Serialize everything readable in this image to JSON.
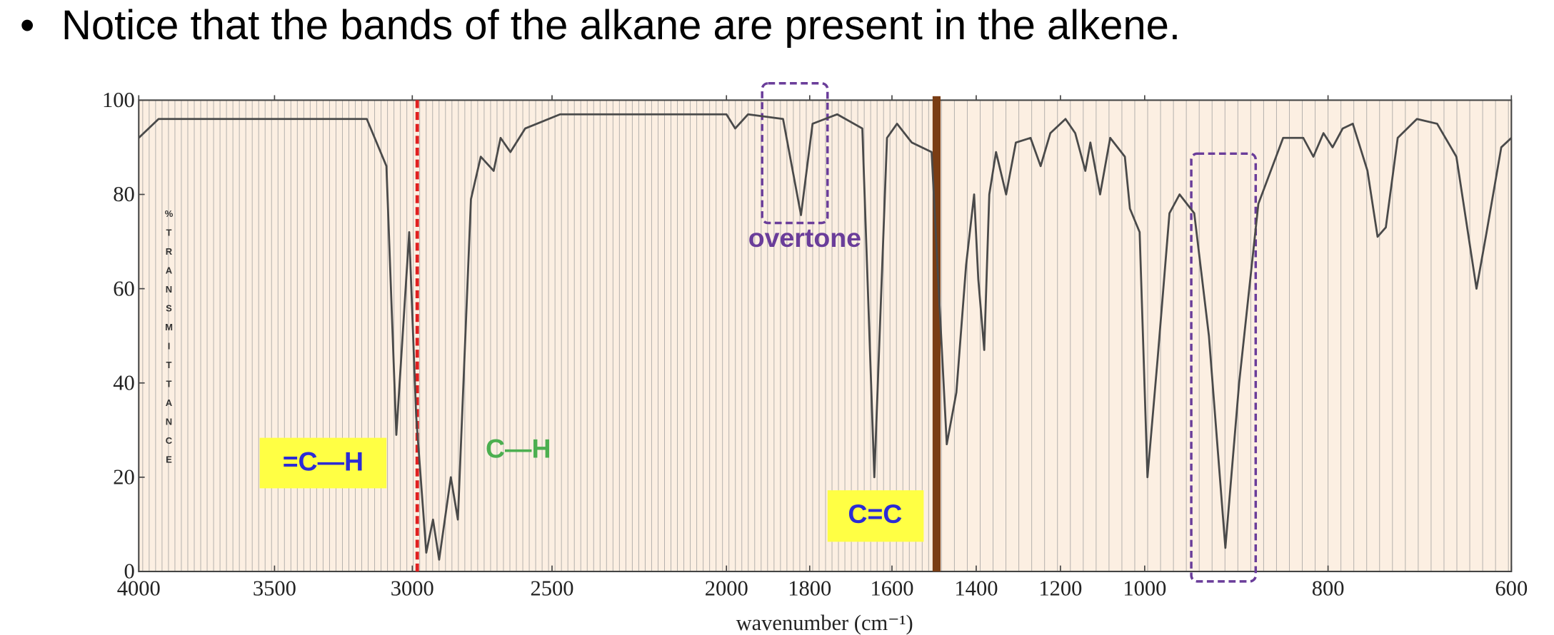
{
  "header": {
    "bullet_text": "Notice that the bands of the alkane are present in the alkene."
  },
  "chart_data": {
    "type": "line",
    "x": [
      4000,
      3927,
      3165,
      3094,
      3058,
      3011,
      2986,
      2950,
      2926,
      2904,
      2862,
      2837,
      2790,
      2755,
      2709,
      2684,
      2649,
      2596,
      2477,
      2000,
      1979,
      1948,
      1864,
      1821,
      1793,
      1733,
      1672,
      1643,
      1612,
      1588,
      1553,
      1506,
      1470,
      1447,
      1424,
      1405,
      1395,
      1381,
      1369,
      1353,
      1329,
      1306,
      1271,
      1247,
      1224,
      1188,
      1165,
      1141,
      1129,
      1106,
      1082,
      1047,
      1035,
      1012,
      997,
      986,
      973,
      962,
      946,
      930,
      912,
      897,
      876,
      849,
      827,
      816,
      805,
      795,
      784,
      773,
      757,
      746,
      737,
      724,
      703,
      681,
      660,
      638,
      627,
      611,
      600
    ],
    "series": [
      {
        "color": "#4a4a4a",
        "values": [
          92,
          96,
          96,
          86,
          29,
          72,
          33,
          4,
          11,
          2.5,
          20,
          11,
          79,
          88,
          85,
          92,
          89,
          94,
          97,
          97,
          94,
          97,
          96,
          75.6,
          95,
          97,
          94,
          20,
          92,
          95,
          91,
          89,
          27,
          38,
          65,
          80,
          62,
          47,
          80,
          89,
          80,
          91,
          92,
          86,
          93,
          96,
          93,
          85,
          91,
          80,
          92,
          88,
          77,
          72,
          20,
          45,
          76,
          80,
          76,
          50,
          5,
          40,
          78,
          92,
          92,
          88,
          93,
          90,
          94,
          95,
          85,
          71,
          73,
          92,
          96,
          95,
          88,
          60,
          72,
          90,
          92
        ]
      }
    ],
    "xlim": [
      4000,
      600
    ],
    "xticks": [
      4000,
      3500,
      3000,
      2500,
      2000,
      1800,
      1600,
      1400,
      1200,
      1000,
      800,
      600
    ],
    "ylim": [
      0,
      100
    ],
    "yticks": [
      0,
      20,
      40,
      60,
      80,
      100
    ],
    "xlabel": "wavenumber (cm⁻¹)",
    "ylabel": "%TRANSMITTANCE",
    "annotations": [
      {
        "text": "overtone",
        "color": "#6a3d9a"
      },
      {
        "text": "=C—H",
        "color": "#2b2bd6"
      },
      {
        "text": "C—H",
        "color": "#4caf50"
      },
      {
        "text": "C=C",
        "color": "#2b2bd6"
      }
    ]
  }
}
